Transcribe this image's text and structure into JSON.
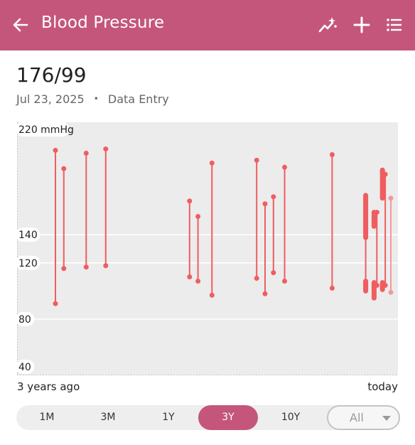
{
  "appbar": {
    "title": "Blood Pressure",
    "back_icon": "arrow-left-icon",
    "actions": [
      "trend-sparkle-icon",
      "add-icon",
      "list-icon"
    ],
    "color": "#c5567b"
  },
  "reading": {
    "value": "176/99",
    "date": "Jul 23, 2025",
    "separator": "•",
    "source": "Data Entry"
  },
  "chart_data": {
    "type": "range-bar",
    "y_unit_label": "220 mmHg",
    "y_ticks": [
      {
        "value": 220,
        "label": "220 mmHg"
      },
      {
        "value": 140,
        "label": "140"
      },
      {
        "value": 120,
        "label": "120"
      },
      {
        "value": 80,
        "label": "80"
      },
      {
        "value": 40,
        "label": "40"
      }
    ],
    "ylim": [
      40,
      220
    ],
    "gridlines": [
      140,
      120,
      80
    ],
    "x_start_label": "3 years ago",
    "x_end_label": "today",
    "bar_color": "#ef5d60",
    "series": [
      {
        "t": 0.0,
        "high": 200,
        "low": 91
      },
      {
        "t": 0.03,
        "high": 187,
        "low": 116
      },
      {
        "t": 0.11,
        "high": 198,
        "low": 117
      },
      {
        "t": 0.18,
        "high": 201,
        "low": 118
      },
      {
        "t": 0.48,
        "high": 164,
        "low": 110
      },
      {
        "t": 0.51,
        "high": 153,
        "low": 107
      },
      {
        "t": 0.56,
        "high": 191,
        "low": 97
      },
      {
        "t": 0.72,
        "high": 193,
        "low": 109
      },
      {
        "t": 0.75,
        "high": 162,
        "low": 98
      },
      {
        "t": 0.78,
        "high": 167,
        "low": 113
      },
      {
        "t": 0.82,
        "high": 188,
        "low": 107
      },
      {
        "t": 0.99,
        "high": 197,
        "low": 102
      },
      {
        "t": 1.11,
        "high": 166,
        "low": 105
      },
      {
        "t": 1.15,
        "high": 156,
        "low": 104
      },
      {
        "t": 1.18,
        "high": 183,
        "low": 104
      },
      {
        "t": 1.2,
        "high": 166,
        "low": 99
      }
    ],
    "thick_ranges": [
      {
        "t": 1.11,
        "high": 168,
        "low": 138
      },
      {
        "t": 1.11,
        "high": 107,
        "low": 100
      },
      {
        "t": 1.14,
        "high": 156,
        "low": 146
      },
      {
        "t": 1.14,
        "high": 106,
        "low": 95
      },
      {
        "t": 1.17,
        "high": 186,
        "low": 166
      },
      {
        "t": 1.17,
        "high": 106,
        "low": 101
      }
    ]
  },
  "ranges": {
    "options": [
      "1M",
      "3M",
      "1Y",
      "3Y",
      "10Y"
    ],
    "selected": "3Y",
    "all_label": "All"
  }
}
